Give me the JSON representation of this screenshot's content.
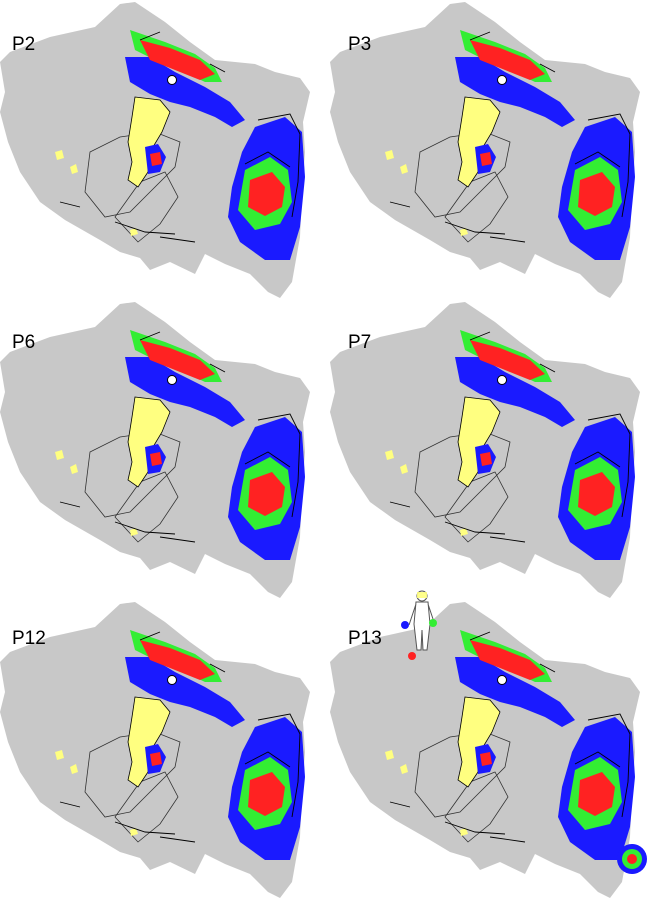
{
  "panels": [
    {
      "label": "P2"
    },
    {
      "label": "P3"
    },
    {
      "label": "P6"
    },
    {
      "label": "P7"
    },
    {
      "label": "P12"
    },
    {
      "label": "P13"
    }
  ],
  "colors": {
    "cortex": "#c8c8c8",
    "visual_field": "#ffff80",
    "map_blue": "#1a1aff",
    "map_green": "#33ee33",
    "map_red": "#ff2222",
    "outline": "#000000"
  },
  "legend": {
    "body_icon": "body-figure-icon",
    "eccentricity_icon": "eccentricity-target-icon"
  }
}
